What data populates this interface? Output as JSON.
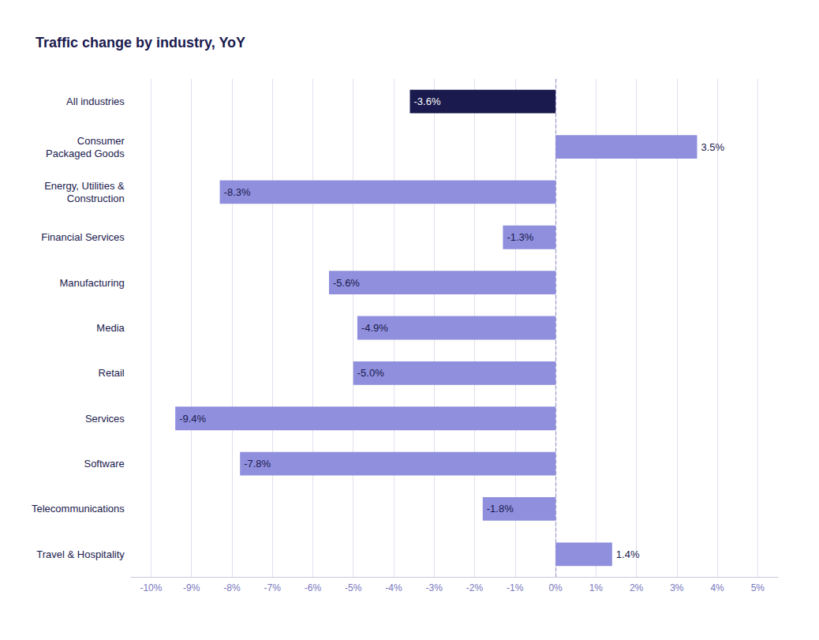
{
  "chart_data": {
    "type": "bar",
    "orientation": "horizontal",
    "title": "Traffic change by industry, YoY",
    "categories": [
      "All industries",
      "Consumer\nPackaged Goods",
      "Energy, Utilities &\nConstruction",
      "Financial Services",
      "Manufacturing",
      "Media",
      "Retail",
      "Services",
      "Software",
      "Telecommunications",
      "Travel & Hospitality"
    ],
    "values": [
      -3.6,
      3.5,
      -8.3,
      -1.3,
      -5.6,
      -4.9,
      -5.0,
      -9.4,
      -7.8,
      -1.8,
      1.4
    ],
    "value_labels": [
      "-3.6%",
      "3.5%",
      "-8.3%",
      "-1.3%",
      "-5.6%",
      "-4.9%",
      "-5.0%",
      "-9.4%",
      "-7.8%",
      "-1.8%",
      "1.4%"
    ],
    "colors": [
      "#1a1a4e",
      "#8f8fdd",
      "#8f8fdd",
      "#8f8fdd",
      "#8f8fdd",
      "#8f8fdd",
      "#8f8fdd",
      "#8f8fdd",
      "#8f8fdd",
      "#8f8fdd",
      "#8f8fdd"
    ],
    "xlim": [
      -10.5,
      5.5
    ],
    "xticks": [
      {
        "value": -10,
        "label": "-10%"
      },
      {
        "value": -9,
        "label": "-9%"
      },
      {
        "value": -8,
        "label": "-8%"
      },
      {
        "value": -7,
        "label": "-7%"
      },
      {
        "value": -6,
        "label": "-6%"
      },
      {
        "value": -5,
        "label": "-5%"
      },
      {
        "value": -4,
        "label": "-4%"
      },
      {
        "value": -3,
        "label": "-3%"
      },
      {
        "value": -2,
        "label": "-2%"
      },
      {
        "value": -1,
        "label": "-1%"
      },
      {
        "value": 0,
        "label": "0%"
      },
      {
        "value": 1,
        "label": "1%"
      },
      {
        "value": 2,
        "label": "2%"
      },
      {
        "value": 3,
        "label": "3%"
      },
      {
        "value": 4,
        "label": "4%"
      },
      {
        "value": 5,
        "label": "5%"
      }
    ],
    "grid": true,
    "data_labels": true
  }
}
